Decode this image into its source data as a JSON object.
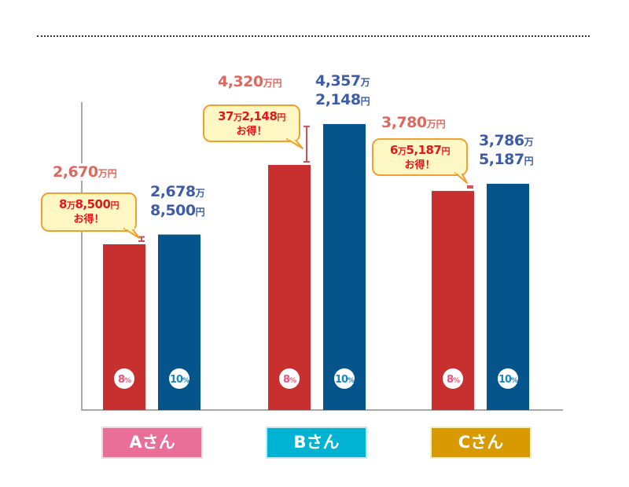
{
  "chart_data": {
    "type": "bar",
    "title": "",
    "xlabel": "",
    "ylabel": "",
    "grid": false,
    "categories": [
      "Aさん",
      "Bさん",
      "Cさん"
    ],
    "series": [
      {
        "name": "8%",
        "color": "#c8302f",
        "badge_color": "#e8557a",
        "values": [
          2670,
          4320,
          3780
        ],
        "labels": [
          {
            "main": "2,670",
            "unit": "万円"
          },
          {
            "main": "4,320",
            "unit": "万円"
          },
          {
            "main": "3,780",
            "unit": "万円"
          }
        ]
      },
      {
        "name": "10%",
        "color": "#06548c",
        "badge_color": "#1a88c8",
        "values": [
          2678.85,
          4357.2148,
          3786.5187
        ],
        "labels": [
          {
            "line1": "2,678",
            "unit1": "万",
            "line2": "8,500",
            "unit2": "円"
          },
          {
            "line1": "4,357",
            "unit1": "万",
            "line2": "2,148",
            "unit2": "円"
          },
          {
            "line1": "3,786",
            "unit1": "万",
            "line2": "5,187",
            "unit2": "円"
          }
        ]
      }
    ],
    "savings": [
      {
        "amount": "8万8,500円",
        "a1": "8",
        "u1": "万",
        "a2": "8,500",
        "u2": "円",
        "note": "お得！"
      },
      {
        "amount": "37万2,148円",
        "a1": "37",
        "u1": "万",
        "a2": "2,148",
        "u2": "円",
        "note": "お得！"
      },
      {
        "amount": "6万5,187円",
        "a1": "6",
        "u1": "万",
        "a2": "5,187",
        "u2": "円",
        "note": "お得！"
      }
    ],
    "category_colors": [
      "#e96f98",
      "#00b3d2",
      "#d89a00"
    ],
    "category_borders": [
      "#fbd3e0",
      "#bfe9f3",
      "#fbefa0"
    ]
  }
}
